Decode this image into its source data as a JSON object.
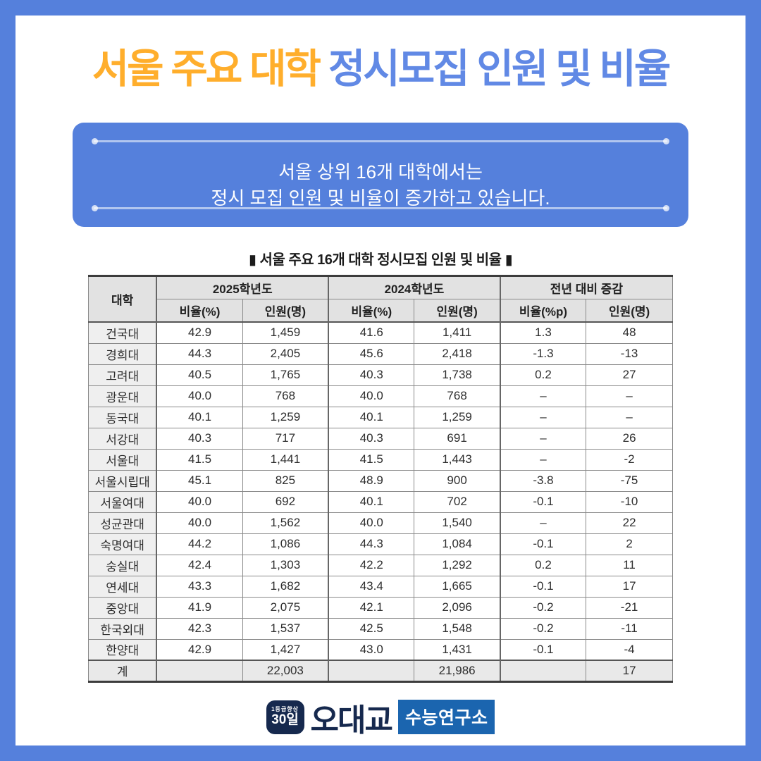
{
  "colors": {
    "background_blue": "#5580DC",
    "title_yellow": "#FFAE2C",
    "title_blue": "#6189E5",
    "infobox_blue": "#5580DC",
    "table_header_bg": "#E2E2E2",
    "table_label_bg": "#EFEFEF",
    "total_row_bg": "#E9E9E9",
    "logo_navy": "#16294E",
    "logo_blue": "#1B65AF"
  },
  "header": {
    "title_highlight": "서울 주요 대학",
    "title_rest": "정시모집 인원 및 비율"
  },
  "info_box": {
    "line1": "서울 상위 16개 대학에서는",
    "line2": "정시 모집 인원 및 비율이 증가하고 있습니다."
  },
  "table": {
    "title": "▮ 서울 주요 16개 대학 정시모집 인원 및 비율 ▮",
    "header": {
      "university": "대학",
      "group_2025": "2025학년도",
      "group_2024": "2024학년도",
      "group_change": "전년 대비 증감"
    },
    "sub_headers": [
      "비율(%)",
      "인원(명)",
      "비율(%)",
      "인원(명)",
      "비율(%p)",
      "인원(명)"
    ],
    "rows": [
      {
        "university": "건국대",
        "values": [
          "42.9",
          "1,459",
          "41.6",
          "1,411",
          "1.3",
          "48"
        ]
      },
      {
        "university": "경희대",
        "values": [
          "44.3",
          "2,405",
          "45.6",
          "2,418",
          "-1.3",
          "-13"
        ]
      },
      {
        "university": "고려대",
        "values": [
          "40.5",
          "1,765",
          "40.3",
          "1,738",
          "0.2",
          "27"
        ]
      },
      {
        "university": "광운대",
        "values": [
          "40.0",
          "768",
          "40.0",
          "768",
          "–",
          "–"
        ]
      },
      {
        "university": "동국대",
        "values": [
          "40.1",
          "1,259",
          "40.1",
          "1,259",
          "–",
          "–"
        ]
      },
      {
        "university": "서강대",
        "values": [
          "40.3",
          "717",
          "40.3",
          "691",
          "–",
          "26"
        ]
      },
      {
        "university": "서울대",
        "values": [
          "41.5",
          "1,441",
          "41.5",
          "1,443",
          "–",
          "-2"
        ]
      },
      {
        "university": "서울시립대",
        "values": [
          "45.1",
          "825",
          "48.9",
          "900",
          "-3.8",
          "-75"
        ]
      },
      {
        "university": "서울여대",
        "values": [
          "40.0",
          "692",
          "40.1",
          "702",
          "-0.1",
          "-10"
        ]
      },
      {
        "university": "성균관대",
        "values": [
          "40.0",
          "1,562",
          "40.0",
          "1,540",
          "–",
          "22"
        ]
      },
      {
        "university": "숙명여대",
        "values": [
          "44.2",
          "1,086",
          "44.3",
          "1,084",
          "-0.1",
          "2"
        ]
      },
      {
        "university": "숭실대",
        "values": [
          "42.4",
          "1,303",
          "42.2",
          "1,292",
          "0.2",
          "11"
        ]
      },
      {
        "university": "연세대",
        "values": [
          "43.3",
          "1,682",
          "43.4",
          "1,665",
          "-0.1",
          "17"
        ]
      },
      {
        "university": "중앙대",
        "values": [
          "41.9",
          "2,075",
          "42.1",
          "2,096",
          "-0.2",
          "-21"
        ]
      },
      {
        "university": "한국외대",
        "values": [
          "42.3",
          "1,537",
          "42.5",
          "1,548",
          "-0.2",
          "-11"
        ]
      },
      {
        "university": "한양대",
        "values": [
          "42.9",
          "1,427",
          "43.0",
          "1,431",
          "-0.1",
          "-4"
        ]
      }
    ],
    "total_row": {
      "label": "계",
      "values": [
        "",
        "22,003",
        "",
        "21,986",
        "",
        "17"
      ]
    }
  },
  "chart_data": {
    "type": "table",
    "title": "서울 주요 16개 대학 정시모집 인원 및 비율",
    "columns": [
      "대학",
      "2025 비율(%)",
      "2025 인원(명)",
      "2024 비율(%)",
      "2024 인원(명)",
      "전년대비 비율(%p)",
      "전년대비 인원(명)"
    ],
    "totals": {
      "인원_2025": "22,003",
      "인원_2024": "21,986",
      "인원_증감": "17"
    }
  },
  "logo": {
    "badge_top": "1등급향상",
    "badge_bottom": "30일",
    "brand": "오대교",
    "suffix": "수능연구소"
  }
}
